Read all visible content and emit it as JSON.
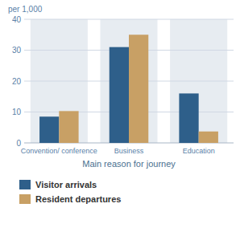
{
  "chart_data": {
    "type": "bar",
    "categories": [
      "Convention/ conference",
      "Business",
      "Education"
    ],
    "series": [
      {
        "name": "Visitor arrivals",
        "color": "#2E5F8A",
        "values": [
          8.5,
          31,
          16
        ]
      },
      {
        "name": "Resident departures",
        "color": "#C8A065",
        "values": [
          10.3,
          35,
          3.7
        ]
      }
    ],
    "x_label": "Main reason for journey",
    "y_label": "per 1,000",
    "ylim": [
      0,
      40
    ],
    "yticks": [
      0,
      10,
      20,
      30,
      40
    ],
    "grid": true,
    "legend": "bottom"
  }
}
